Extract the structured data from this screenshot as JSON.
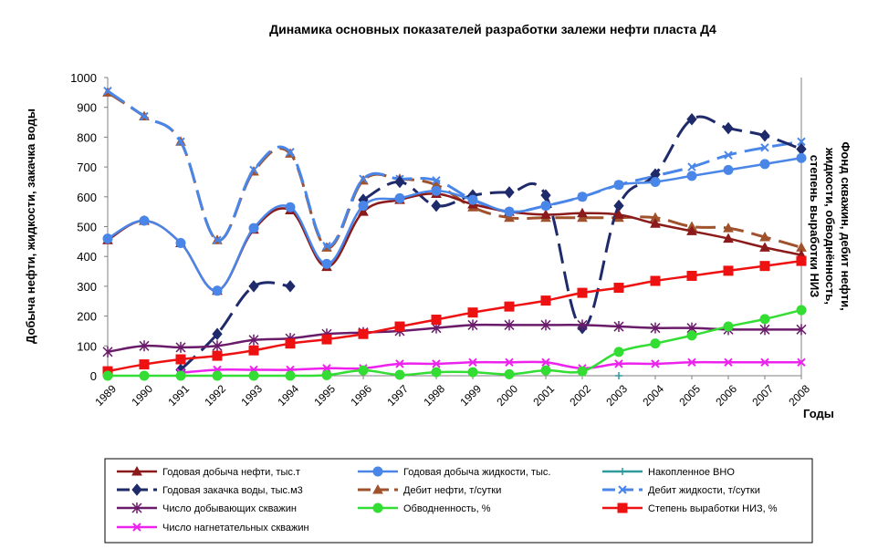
{
  "chart_data": {
    "type": "line",
    "title": "Динамика основных показателей разработки залежи нефти пласта Д4",
    "ylabel_left": "Добыча нефти, жидкости, закачка воды",
    "ylabel_right": "Фонд скважин, дебит нефти, жидкости, обводнённость, степень выработки НИЗ",
    "xlabel": "Годы",
    "ylim": [
      0,
      1000
    ],
    "yticks": [
      "0",
      "100",
      "200",
      "300",
      "400",
      "500",
      "600",
      "700",
      "800",
      "900",
      "1000"
    ],
    "categories": [
      "1989",
      "1990",
      "1991",
      "1992",
      "1993",
      "1994",
      "1995",
      "1996",
      "1997",
      "1998",
      "1999",
      "2000",
      "2001",
      "2002",
      "2003",
      "2004",
      "2005",
      "2006",
      "2007",
      "2008"
    ],
    "grid": false,
    "legend_position": "bottom",
    "series": [
      {
        "name": "Годовая добыча нефти, тыс.т",
        "color": "#8B1A1A",
        "marker": "triangle",
        "dash": "solid",
        "values": [
          455,
          520,
          445,
          285,
          490,
          555,
          365,
          550,
          590,
          610,
          575,
          550,
          540,
          545,
          540,
          510,
          485,
          460,
          430,
          405
        ]
      },
      {
        "name": "Годовая добыча жидкости, тыс.",
        "color": "#4A86E8",
        "marker": "circle",
        "dash": "solid",
        "values": [
          460,
          520,
          445,
          285,
          495,
          565,
          375,
          570,
          595,
          620,
          590,
          550,
          570,
          600,
          640,
          650,
          670,
          690,
          710,
          730
        ]
      },
      {
        "name": "Накопленное ВНО",
        "color": "#2E9A9A",
        "marker": "plus",
        "dash": "solid",
        "values": [
          null,
          null,
          null,
          null,
          null,
          null,
          null,
          null,
          null,
          null,
          null,
          null,
          null,
          null,
          0,
          null,
          null,
          null,
          null,
          null
        ]
      },
      {
        "name": "Годовая закачка воды, тыс.м3",
        "color": "#1F2A6B",
        "marker": "diamond",
        "dash": "longdash",
        "values": [
          null,
          null,
          20,
          140,
          300,
          300,
          null,
          590,
          650,
          570,
          605,
          615,
          605,
          160,
          570,
          675,
          860,
          830,
          805,
          760
        ]
      },
      {
        "name": "Дебит нефти, т/сутки",
        "color": "#A0522D",
        "marker": "triangle",
        "dash": "longdash",
        "values": [
          950,
          870,
          785,
          455,
          685,
          745,
          430,
          655,
          660,
          640,
          565,
          530,
          530,
          530,
          530,
          530,
          500,
          495,
          465,
          430
        ]
      },
      {
        "name": "Дебит жидкости, т/сутки",
        "color": "#4A86E8",
        "marker": "x",
        "dash": "longdash",
        "values": [
          955,
          870,
          785,
          455,
          690,
          750,
          435,
          660,
          660,
          655,
          590,
          550,
          570,
          600,
          640,
          670,
          700,
          740,
          765,
          785
        ]
      },
      {
        "name": "Число добывающих скважин",
        "color": "#6A1B6A",
        "marker": "star",
        "dash": "solid",
        "values": [
          80,
          100,
          95,
          100,
          120,
          125,
          140,
          145,
          150,
          160,
          170,
          170,
          170,
          170,
          165,
          160,
          160,
          155,
          155,
          155
        ]
      },
      {
        "name": "Обводненность, %",
        "color": "#33DD33",
        "marker": "circle",
        "dash": "solid",
        "values": [
          0,
          0,
          0,
          0,
          0,
          0,
          2,
          18,
          3,
          12,
          12,
          5,
          18,
          15,
          80,
          108,
          135,
          165,
          190,
          220
        ]
      },
      {
        "name": "Степень выработки НИЗ, %",
        "color": "#EE1111",
        "marker": "square",
        "dash": "solid",
        "values": [
          15,
          38,
          55,
          67,
          85,
          108,
          122,
          140,
          165,
          188,
          212,
          232,
          252,
          278,
          295,
          318,
          335,
          352,
          368,
          385
        ]
      },
      {
        "name": "Число нагнетательных скважин",
        "color": "#EE22EE",
        "marker": "x",
        "dash": "solid",
        "values": [
          null,
          null,
          10,
          20,
          20,
          20,
          25,
          25,
          40,
          40,
          45,
          45,
          45,
          25,
          40,
          40,
          45,
          45,
          45,
          45
        ]
      }
    ]
  }
}
